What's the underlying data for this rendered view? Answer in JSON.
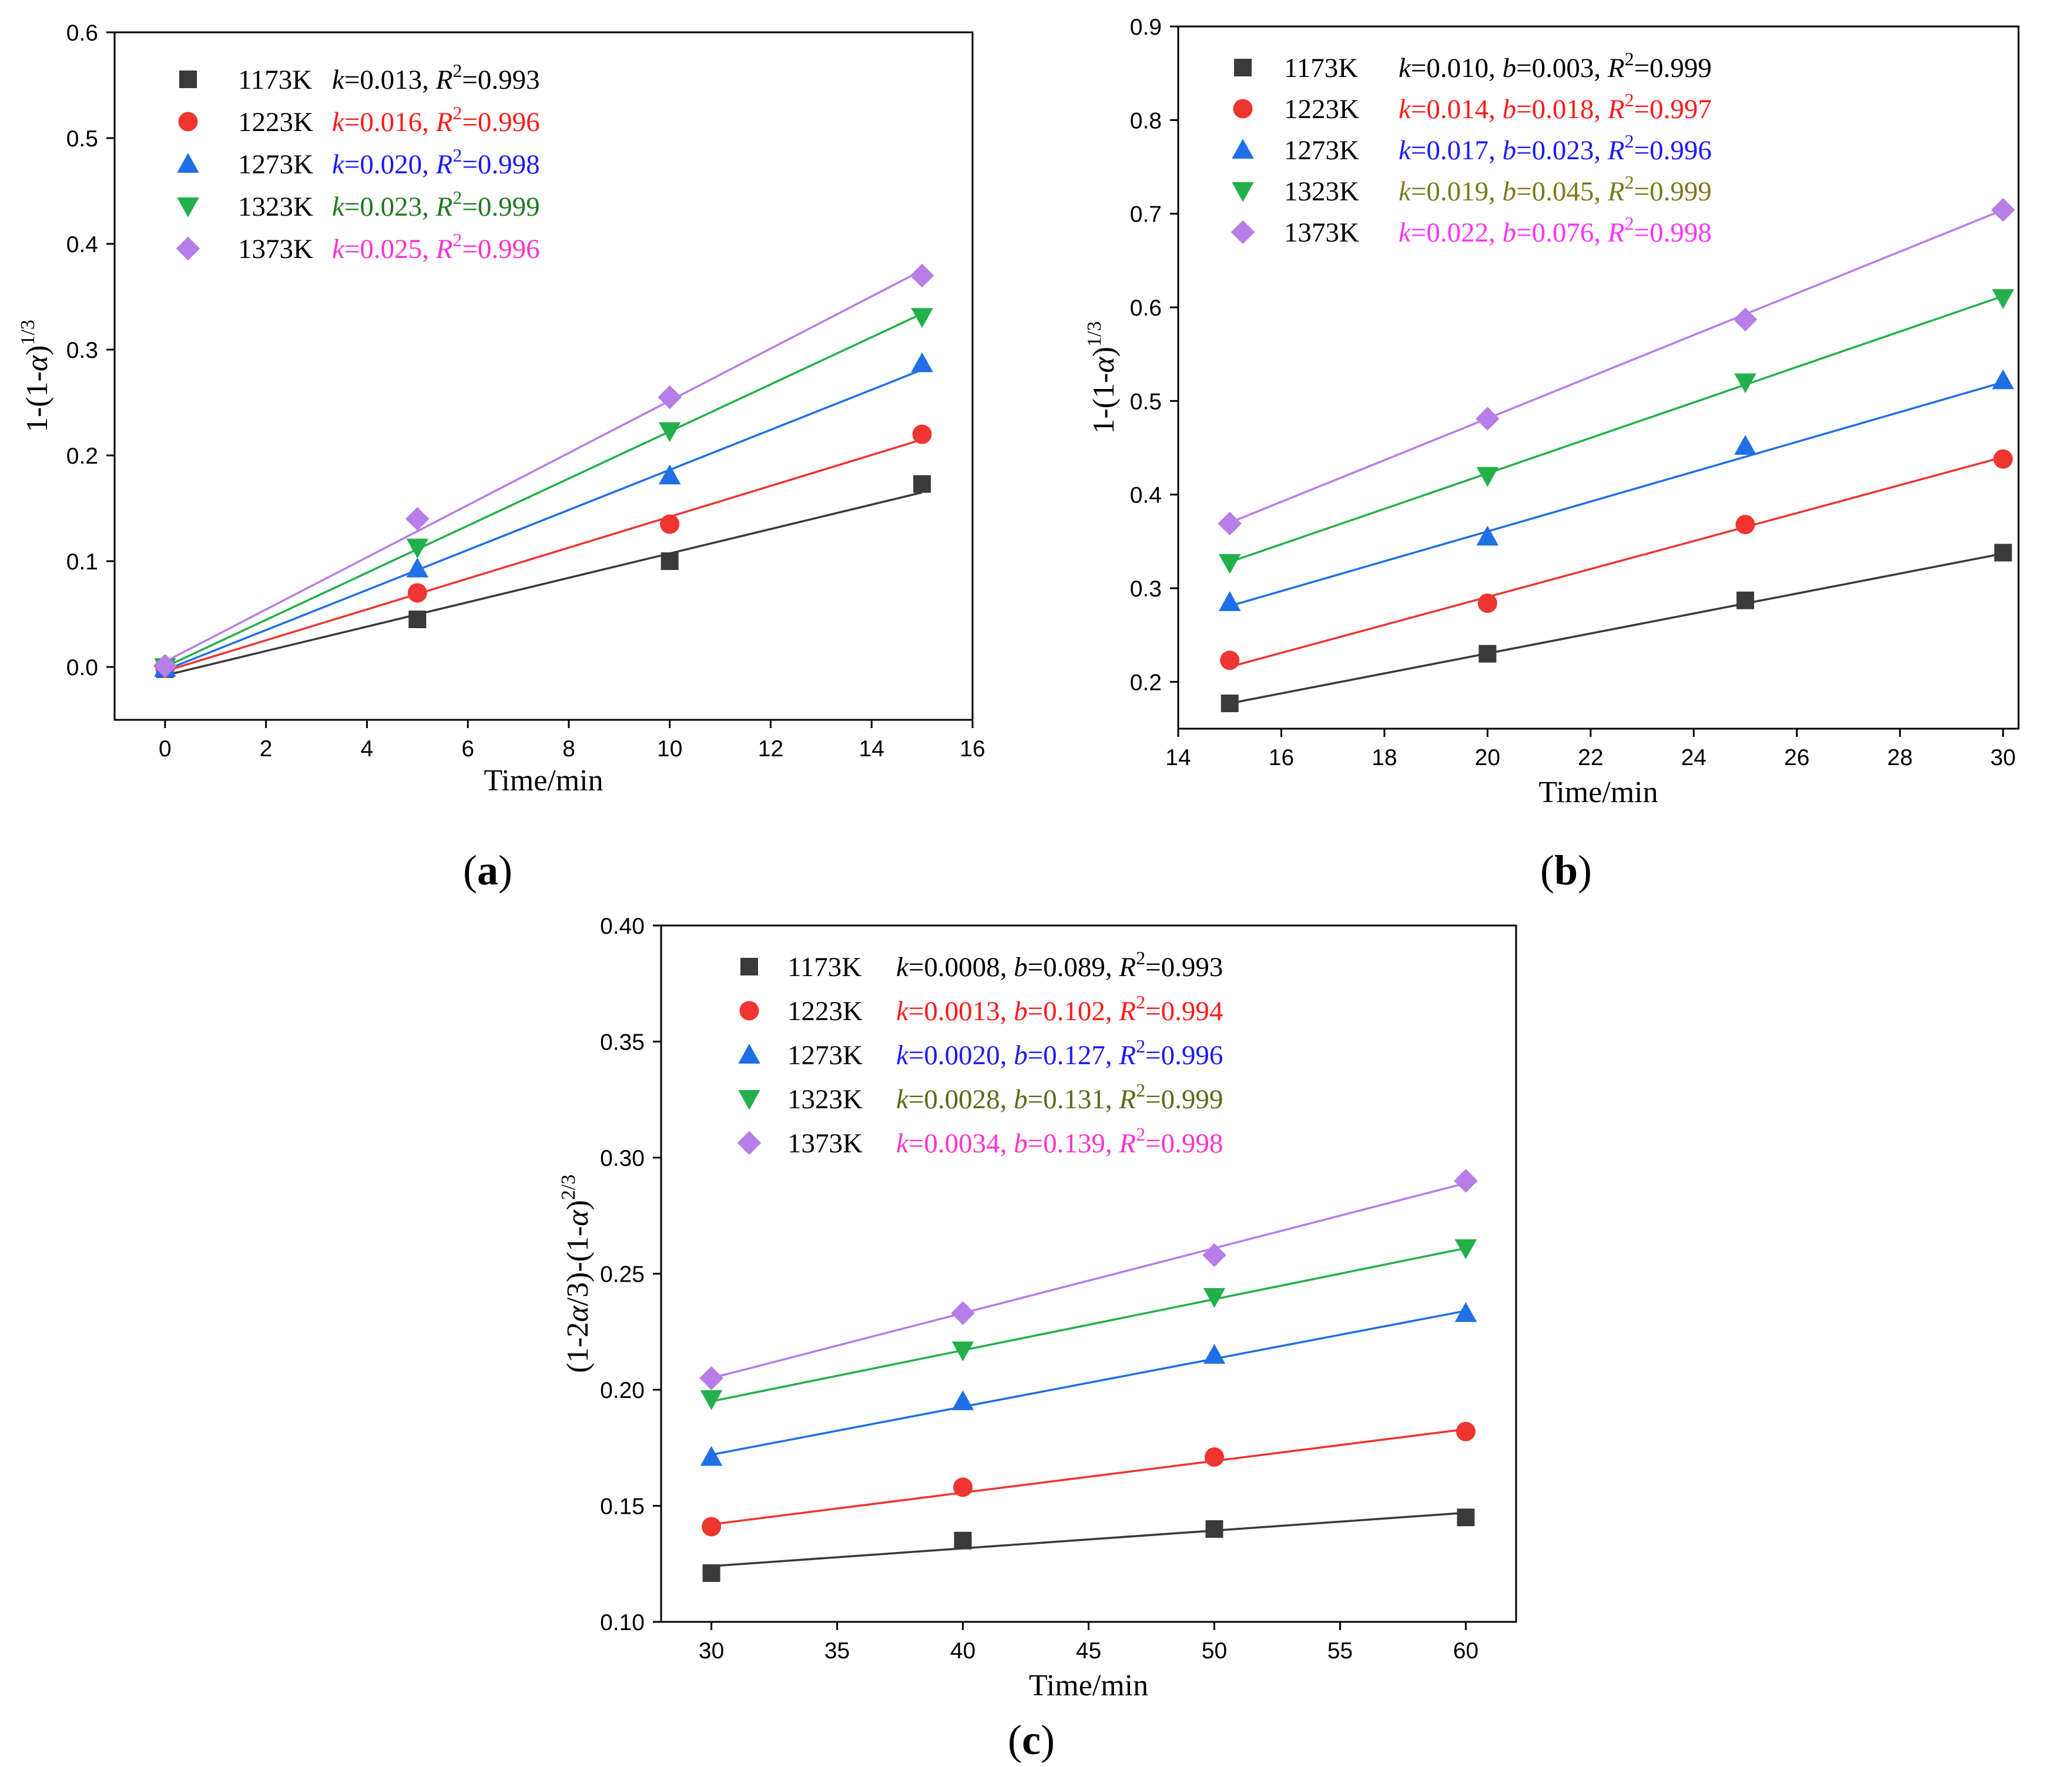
{
  "colors": {
    "1173K": "#3a3a3a",
    "1223K": "#ee3530",
    "1273K": "#1f6fe6",
    "1323K": "#22b04a",
    "1373K": "#b77de8"
  },
  "anno_colors": {
    "1173K": "#000000",
    "1223K": "#ff1a1a",
    "1273K": "#1a1aff",
    "1323K": "#1f7a1f",
    "1373K": "#ff33cc"
  },
  "anno_colors_b": {
    "1173K": "#000000",
    "1223K": "#ff1a1a",
    "1273K": "#1a1aff",
    "1323K": "#7a7a1a",
    "1373K": "#ff33ff"
  },
  "anno_colors_c": {
    "1173K": "#000000",
    "1223K": "#ff1a1a",
    "1273K": "#1a1aff",
    "1323K": "#5a6a1a",
    "1373K": "#ff33cc"
  },
  "chart_data": [
    {
      "id": "a",
      "type": "scatter",
      "panel_label": "a",
      "xlabel": "Time/min",
      "ylabel": "1-(1-α)^1/3",
      "xlim": [
        -1,
        16
      ],
      "ylim": [
        -0.05,
        0.6
      ],
      "xticks": [
        0,
        2,
        4,
        6,
        8,
        10,
        12,
        14,
        16
      ],
      "yticks": [
        0.0,
        0.1,
        0.2,
        0.3,
        0.4,
        0.5,
        0.6
      ],
      "ytick_labels": [
        "0.0",
        "0.1",
        "0.2",
        "0.3",
        "0.4",
        "0.5",
        "0.6"
      ],
      "xtick_labels": [
        "0",
        "2",
        "4",
        "6",
        "8",
        "10",
        "12",
        "14",
        "16"
      ],
      "fit_range": [
        0,
        15
      ],
      "series": [
        {
          "name": "1173K",
          "marker": "square",
          "x": [
            0,
            5,
            10,
            15
          ],
          "y": [
            -0.002,
            0.045,
            0.1,
            0.173
          ],
          "fit": [
            -0.008,
            0.165
          ],
          "k": "0.013",
          "R2": "0.993"
        },
        {
          "name": "1223K",
          "marker": "circle",
          "x": [
            0,
            5,
            10,
            15
          ],
          "y": [
            -0.001,
            0.07,
            0.135,
            0.22
          ],
          "fit": [
            -0.004,
            0.215
          ],
          "k": "0.016",
          "R2": "0.996"
        },
        {
          "name": "1273K",
          "marker": "triangle-up",
          "x": [
            0,
            5,
            10,
            15
          ],
          "y": [
            -0.001,
            0.093,
            0.181,
            0.287
          ],
          "fit": [
            -0.003,
            0.281
          ],
          "k": "0.020",
          "R2": "0.998"
        },
        {
          "name": "1323K",
          "marker": "triangle-down",
          "x": [
            0,
            5,
            10,
            15
          ],
          "y": [
            0.0,
            0.113,
            0.223,
            0.331
          ],
          "fit": [
            0.0,
            0.334
          ],
          "k": "0.023",
          "R2": "0.999"
        },
        {
          "name": "1373K",
          "marker": "diamond",
          "x": [
            0,
            5,
            10,
            15
          ],
          "y": [
            0.001,
            0.14,
            0.255,
            0.37
          ],
          "fit": [
            0.005,
            0.375
          ],
          "k": "0.025",
          "R2": "0.996"
        }
      ]
    },
    {
      "id": "b",
      "type": "scatter",
      "panel_label": "b",
      "xlabel": "Time/min",
      "ylabel": "1-(1-α)^1/3",
      "xlim": [
        14,
        30.3
      ],
      "ylim": [
        0.15,
        0.9
      ],
      "xticks": [
        14,
        16,
        18,
        20,
        22,
        24,
        26,
        28,
        30
      ],
      "xtick_labels": [
        "14",
        "16",
        "18",
        "20",
        "22",
        "24",
        "26",
        "28",
        "30"
      ],
      "yticks": [
        0.2,
        0.3,
        0.4,
        0.5,
        0.6,
        0.7,
        0.8,
        0.9
      ],
      "ytick_labels": [
        "0.2",
        "0.3",
        "0.4",
        "0.5",
        "0.6",
        "0.7",
        "0.8",
        "0.9"
      ],
      "fit_range": [
        15,
        30
      ],
      "series": [
        {
          "name": "1173K",
          "marker": "square",
          "x": [
            15,
            20,
            25,
            30
          ],
          "y": [
            0.177,
            0.23,
            0.287,
            0.338
          ],
          "fit": [
            0.177,
            0.337
          ],
          "k": "0.010",
          "b": "0.003",
          "R2": "0.999"
        },
        {
          "name": "1223K",
          "marker": "circle",
          "x": [
            15,
            20,
            25,
            30
          ],
          "y": [
            0.223,
            0.284,
            0.368,
            0.438
          ],
          "fit": [
            0.216,
            0.44
          ],
          "k": "0.014",
          "b": "0.018",
          "R2": "0.997"
        },
        {
          "name": "1273K",
          "marker": "triangle-up",
          "x": [
            15,
            20,
            25,
            30
          ],
          "y": [
            0.285,
            0.355,
            0.452,
            0.522
          ],
          "fit": [
            0.281,
            0.52
          ],
          "k": "0.017",
          "b": "0.023",
          "R2": "0.996"
        },
        {
          "name": "1323K",
          "marker": "triangle-down",
          "x": [
            15,
            20,
            25,
            30
          ],
          "y": [
            0.327,
            0.42,
            0.52,
            0.61
          ],
          "fit": [
            0.328,
            0.612
          ],
          "k": "0.019",
          "b": "0.045",
          "R2": "0.999"
        },
        {
          "name": "1373K",
          "marker": "diamond",
          "x": [
            15,
            20,
            25,
            30
          ],
          "y": [
            0.369,
            0.481,
            0.587,
            0.704
          ],
          "fit": [
            0.37,
            0.704
          ],
          "k": "0.022",
          "b": "0.076",
          "R2": "0.998"
        }
      ]
    },
    {
      "id": "c",
      "type": "scatter",
      "panel_label": "c",
      "xlabel": "Time/min",
      "ylabel": "(1-2α/3)-(1-α)^2/3",
      "xlim": [
        28,
        62
      ],
      "ylim": [
        0.1,
        0.4
      ],
      "xticks": [
        30,
        35,
        40,
        45,
        50,
        55,
        60
      ],
      "xtick_labels": [
        "30",
        "35",
        "40",
        "45",
        "50",
        "55",
        "60"
      ],
      "yticks": [
        0.1,
        0.15,
        0.2,
        0.25,
        0.3,
        0.35,
        0.4
      ],
      "ytick_labels": [
        "0.10",
        "0.15",
        "0.20",
        "0.25",
        "0.30",
        "0.35",
        "0.40"
      ],
      "fit_range": [
        30,
        60
      ],
      "series": [
        {
          "name": "1173K",
          "marker": "square",
          "x": [
            30,
            40,
            50,
            60
          ],
          "y": [
            0.121,
            0.135,
            0.14,
            0.145
          ],
          "fit": [
            0.124,
            0.147
          ],
          "k": "0.0008",
          "b": "0.089",
          "R2": "0.993"
        },
        {
          "name": "1223K",
          "marker": "circle",
          "x": [
            30,
            40,
            50,
            60
          ],
          "y": [
            0.141,
            0.158,
            0.171,
            0.182
          ],
          "fit": [
            0.142,
            0.183
          ],
          "k": "0.0013",
          "b": "0.102",
          "R2": "0.994"
        },
        {
          "name": "1273K",
          "marker": "triangle-up",
          "x": [
            30,
            40,
            50,
            60
          ],
          "y": [
            0.171,
            0.195,
            0.215,
            0.233
          ],
          "fit": [
            0.172,
            0.234
          ],
          "k": "0.0020",
          "b": "0.127",
          "R2": "0.996"
        },
        {
          "name": "1323K",
          "marker": "triangle-down",
          "x": [
            30,
            40,
            50,
            60
          ],
          "y": [
            0.196,
            0.217,
            0.24,
            0.261
          ],
          "fit": [
            0.195,
            0.261
          ],
          "k": "0.0028",
          "b": "0.131",
          "R2": "0.999"
        },
        {
          "name": "1373K",
          "marker": "diamond",
          "x": [
            30,
            40,
            50,
            60
          ],
          "y": [
            0.205,
            0.233,
            0.258,
            0.29
          ],
          "fit": [
            0.205,
            0.289
          ],
          "k": "0.0034",
          "b": "0.139",
          "R2": "0.998"
        }
      ]
    }
  ]
}
